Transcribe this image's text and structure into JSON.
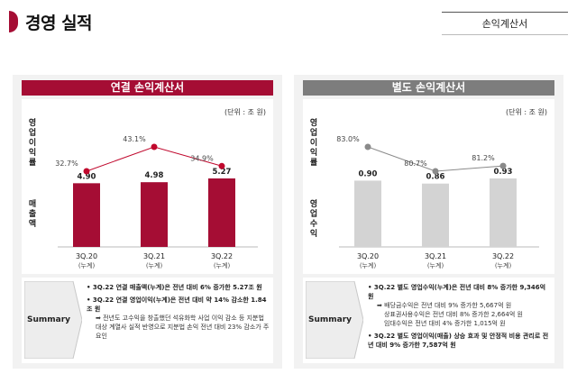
{
  "page": {
    "title": "경영 실적",
    "doc_tag": "손익계산서"
  },
  "panels": [
    {
      "header": "연결 손익계산서",
      "unit": "(단위 : 조 원)",
      "label_top": "영업이익률",
      "label_bottom": "매출액",
      "summary_label": "Summary",
      "summary": {
        "item1": "• 3Q.22 연결 매출액(누계)은 전년 대비 6% 증가한 5.27조 원",
        "item2": "• 3Q.22 연결 영업이익(누계)은 전년 대비 약 14% 감소한 1.84조 원",
        "item2_sub": "➡ 전년도 고수익을 창출했던 석유화학 사업 이익 감소 등 지분법 대상 계열사 실적 반영으로 지분법 손익 전년 대비 23% 감소가 주요인"
      }
    },
    {
      "header": "별도 손익계산서",
      "unit": "(단위 : 조 원)",
      "label_top": "영업이익률",
      "label_bottom": "영업수익",
      "summary_label": "Summary",
      "summary": {
        "item1": "• 3Q.22 별도 영업수익(누계)은 전년 대비 8% 증가한 9,346억 원",
        "item1_sub1": "➡ 배당금수익은 전년 대비 9% 증가한 5,667억 원",
        "item1_sub2": "상표권사용수익은 전년 대비 8% 증가한 2,664억 원",
        "item1_sub3": "임대수익은 전년 대비 4% 증가한 1,015억 원",
        "item2": "• 3Q.22 별도 영업이익(매출) 상승 효과 및 안정적 비용 관리로 전년 대비 9% 증가한 7,587억 원"
      }
    }
  ],
  "chart_data": [
    {
      "type": "bar",
      "title": "연결 손익계산서",
      "categories": [
        "3Q.20",
        "3Q.21",
        "3Q.22"
      ],
      "category_sub": "(누계)",
      "values": [
        4.9,
        4.98,
        5.27
      ],
      "value_labels": [
        "4.90",
        "4.98",
        "5.27"
      ],
      "line_values": [
        32.7,
        43.1,
        34.9
      ],
      "line_labels": [
        "32.7%",
        "43.1%",
        "34.9%"
      ],
      "bar_color": "#a50d34",
      "line_color": "#c0082d",
      "unit": "(단위 : 조 원)"
    },
    {
      "type": "bar",
      "title": "별도 손익계산서",
      "categories": [
        "3Q.20",
        "3Q.21",
        "3Q.22"
      ],
      "category_sub": "(누계)",
      "values": [
        0.9,
        0.86,
        0.93
      ],
      "value_labels": [
        "0.90",
        "0.86",
        "0.93"
      ],
      "line_values": [
        83.0,
        80.7,
        81.2
      ],
      "line_labels": [
        "83.0%",
        "80.7%",
        "81.2%"
      ],
      "bar_color": "#d3d3d3",
      "line_color": "#8a8a8a",
      "unit": "(단위 : 조 원)"
    }
  ]
}
